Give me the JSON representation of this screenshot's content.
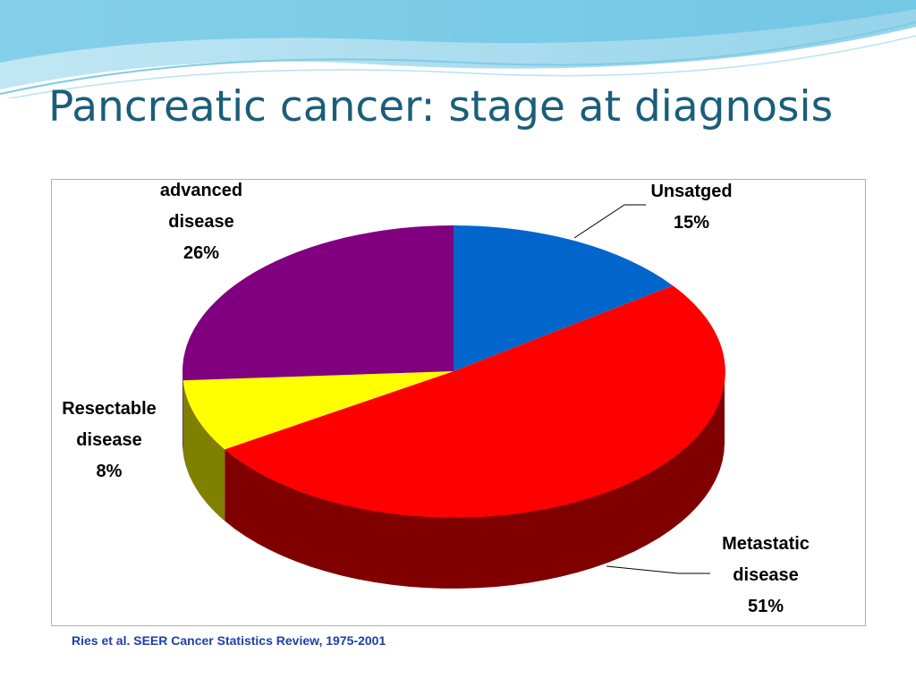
{
  "slide": {
    "title": "Pancreatic cancer: stage at diagnosis",
    "source": "Ries et al. SEER Cancer Statistics Review, 1975-2001",
    "title_color": "#1a5e7a",
    "source_color": "#1f3fa8"
  },
  "chart_data": {
    "type": "pie",
    "title": "",
    "labels": [
      {
        "lines": [
          "Unsatged",
          "15%"
        ]
      },
      {
        "lines": [
          "Metastatic",
          "disease",
          "51%"
        ]
      },
      {
        "lines": [
          "Resectable",
          "disease",
          "8%"
        ]
      },
      {
        "lines": [
          "advanced",
          "disease",
          "26%"
        ]
      }
    ],
    "slices": [
      {
        "label": "Unsatged",
        "value": 15,
        "color": "#0066cc",
        "side_color": "#003a80"
      },
      {
        "label": "Metastatic disease",
        "value": 51,
        "color": "#ff0000",
        "side_color": "#800000"
      },
      {
        "label": "Resectable disease",
        "value": 8,
        "color": "#ffff00",
        "side_color": "#7f7f00"
      },
      {
        "label": "advanced disease",
        "value": 26,
        "color": "#800080",
        "side_color": "#4d004d"
      }
    ],
    "legend": "none",
    "style": "3d"
  }
}
